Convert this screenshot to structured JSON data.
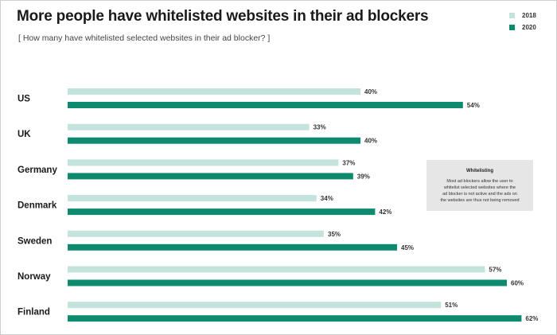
{
  "chart_data": {
    "type": "bar",
    "orientation": "horizontal",
    "title": "More people have whitelisted websites in their ad blockers",
    "subtitle": "[ How many have whitelisted selected websites in their ad blocker? ]",
    "categories": [
      "US",
      "UK",
      "Germany",
      "Denmark",
      "Sweden",
      "Norway",
      "Finland"
    ],
    "series": [
      {
        "name": "2018",
        "color": "#c3e3dc",
        "values": [
          40,
          33,
          37,
          34,
          35,
          57,
          51
        ]
      },
      {
        "name": "2020",
        "color": "#0e8a6f",
        "values": [
          54,
          40,
          39,
          42,
          45,
          60,
          62
        ]
      }
    ],
    "value_suffix": "%",
    "xlim": [
      0,
      100
    ],
    "grid": false,
    "legend": "top-right",
    "annotation": {
      "title": "Whitelisting",
      "lines": [
        "Most ad blockers allow the user to",
        "whitelist selected websites where the",
        "ad blocker is not active and the ads on",
        "the websites are thus not being removed"
      ]
    }
  }
}
